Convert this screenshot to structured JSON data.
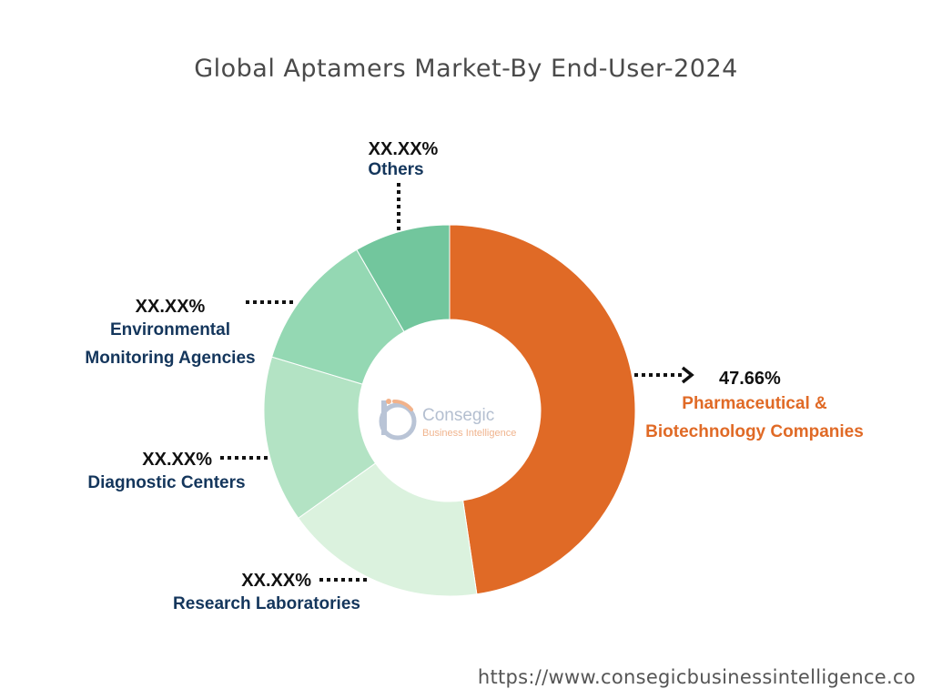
{
  "colors": {
    "pharma": "#e06a26",
    "research": "#dbf2de",
    "diagnostic": "#b3e3c4",
    "environmental": "#94d8b3",
    "others": "#72c69d",
    "label_dark": "#14365c",
    "label_orange": "#e06a26"
  },
  "chart_data": {
    "type": "pie",
    "title": "Global Aptamers Market-By End-User-2024",
    "slices": [
      {
        "label_lines": [
          "Pharmaceutical &",
          "Biotechnology Companies"
        ],
        "value_label": "47.66%",
        "value": 47.66
      },
      {
        "label_lines": [
          "Research Laboratories"
        ],
        "value_label": "XX.XX%",
        "value": 17.5
      },
      {
        "label_lines": [
          "Diagnostic Centers"
        ],
        "value_label": "XX.XX%",
        "value": 14.5
      },
      {
        "label_lines": [
          "Environmental",
          "Monitoring Agencies"
        ],
        "value_label": "XX.XX%",
        "value": 12.0
      },
      {
        "label_lines": [
          "Others"
        ],
        "value_label": "XX.XX%",
        "value": 8.34
      }
    ]
  },
  "logo": {
    "name": "Consegic",
    "tagline": "Business Intelligence"
  },
  "source_url": "https://www.consegicbusinessintelligence.co"
}
